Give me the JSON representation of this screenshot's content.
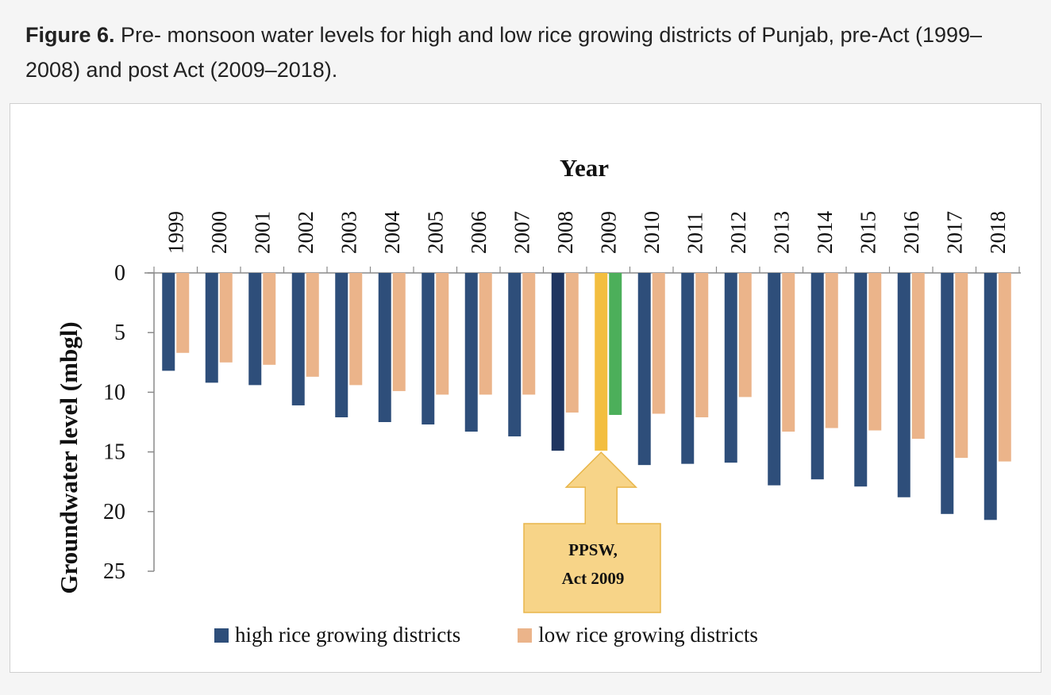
{
  "caption": {
    "label": "Figure 6.",
    "text": " Pre- monsoon water levels for high and low rice growing districts of Punjab, pre-Act (1999–2008) and post Act (2009–2018)."
  },
  "colors": {
    "high": "#2e4e7a",
    "low": "#ebb48a",
    "high_2008": "#1f3560",
    "highlight_high": "#f3be3f",
    "highlight_low": "#4caf5a",
    "callout_fill": "#f7d488",
    "callout_stroke": "#e8b54a"
  },
  "legend": {
    "high_label": "high rice growing districts",
    "low_label": "low rice growing districts"
  },
  "callout": {
    "line1": "PPSW,",
    "line2": "Act 2009"
  },
  "chart_data": {
    "type": "bar",
    "xlabel": "Year",
    "ylabel": "Groundwater level (mbgl)",
    "ylim": [
      0,
      25
    ],
    "y_inverted": true,
    "yticks": [
      0,
      5,
      10,
      15,
      20,
      25
    ],
    "x_axis_position": "top",
    "legend_position": "bottom",
    "grid": false,
    "categories": [
      "1999",
      "2000",
      "2001",
      "2002",
      "2003",
      "2004",
      "2005",
      "2006",
      "2007",
      "2008",
      "2009",
      "2010",
      "2011",
      "2012",
      "2013",
      "2014",
      "2015",
      "2016",
      "2017",
      "2018"
    ],
    "series": [
      {
        "name": "high rice growing districts",
        "values": [
          8.2,
          9.2,
          9.4,
          11.1,
          12.1,
          12.5,
          12.7,
          13.3,
          13.7,
          14.9,
          14.9,
          16.1,
          16.0,
          15.9,
          17.8,
          17.3,
          17.9,
          18.8,
          20.2,
          20.7
        ]
      },
      {
        "name": "low rice growing districts",
        "values": [
          6.7,
          7.5,
          7.7,
          8.7,
          9.4,
          9.9,
          10.2,
          10.2,
          10.2,
          11.7,
          11.9,
          11.8,
          12.1,
          10.4,
          13.3,
          13.0,
          13.2,
          13.9,
          15.5,
          15.8
        ]
      }
    ]
  }
}
